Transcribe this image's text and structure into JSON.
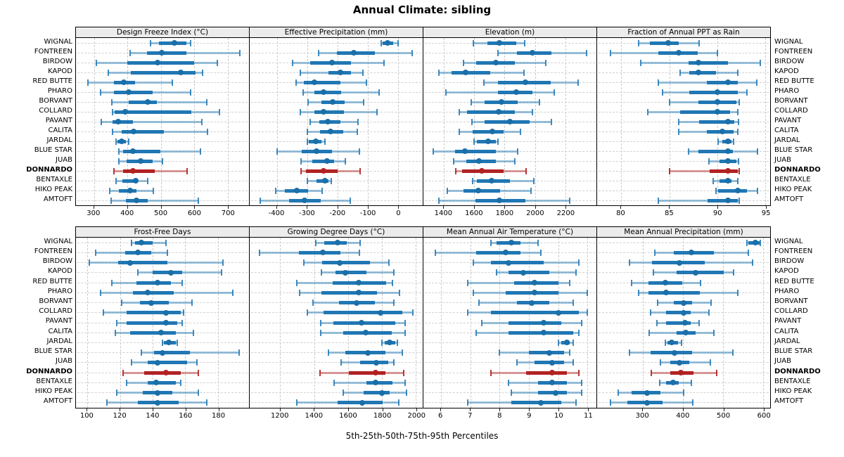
{
  "title": "Annual Climate: sibling",
  "xlabel": "5th-25th-50th-75th-95th Percentiles",
  "sites": [
    "WIGNAL",
    "FONTREEN",
    "BIRDOW",
    "KAPOD",
    "RED BUTTE",
    "PHARO",
    "BORVANT",
    "COLLARD",
    "PAVANT",
    "CALITA",
    "JARDAL",
    "BLUE STAR",
    "JUAB",
    "DONNARDO",
    "BENTAXLE",
    "HIKO PEAK",
    "AMTOFT"
  ],
  "highlight_site": "DONNARDO",
  "colors": {
    "blue_dot": "#1b6fa8",
    "blue_bar": "#2077b4",
    "blue_whisker": "rgba(32,119,180,0.45)",
    "blue_cap": "rgba(32,119,180,0.85)",
    "red_dot": "#b22222",
    "red_bar": "#b22222",
    "red_whisker": "rgba(178,34,34,0.45)",
    "red_cap": "rgba(178,34,34,0.9)",
    "strip_bg": "#ececec",
    "grid": "#c9c9c9"
  },
  "chart_data": [
    {
      "type": "scatter",
      "variant": "percentile-interval-dotplot",
      "title": "Design Freeze Index (°C)",
      "percentiles": [
        5,
        25,
        50,
        75,
        95
      ],
      "xlim": [
        246,
        764
      ],
      "ticks": [
        300,
        400,
        500,
        600,
        700
      ],
      "values": [
        [
          470,
          495,
          540,
          577,
          590
        ],
        [
          408,
          458,
          503,
          576,
          737
        ],
        [
          308,
          400,
          490,
          600,
          670
        ],
        [
          343,
          410,
          560,
          605,
          626
        ],
        [
          281,
          359,
          390,
          422,
          534
        ],
        [
          320,
          359,
          404,
          475,
          590
        ],
        [
          353,
          404,
          460,
          489,
          638
        ],
        [
          356,
          361,
          394,
          592,
          676
        ],
        [
          321,
          355,
          372,
          417,
          622
        ],
        [
          355,
          382,
          418,
          510,
          640
        ],
        [
          365,
          370,
          382,
          395,
          404
        ],
        [
          374,
          388,
          417,
          499,
          619
        ],
        [
          374,
          397,
          440,
          475,
          504
        ],
        [
          359,
          388,
          417,
          482,
          579
        ],
        [
          365,
          385,
          426,
          432,
          460
        ],
        [
          348,
          374,
          408,
          428,
          478
        ],
        [
          351,
          395,
          428,
          460,
          613
        ]
      ]
    },
    {
      "type": "scatter",
      "variant": "percentile-interval-dotplot",
      "title": "Effective Precipitation (mm)",
      "percentiles": [
        5,
        25,
        50,
        75,
        95
      ],
      "xlim": [
        -490,
        82
      ],
      "ticks": [
        -400,
        -300,
        -200,
        -100,
        0
      ],
      "values": [
        [
          -55,
          -50,
          -35,
          -15,
          0
        ],
        [
          -262,
          -202,
          -147,
          -75,
          48
        ],
        [
          -348,
          -290,
          -218,
          -154,
          -46
        ],
        [
          -323,
          -230,
          -190,
          -155,
          -115
        ],
        [
          -337,
          -312,
          -275,
          -190,
          -105
        ],
        [
          -314,
          -277,
          -245,
          -188,
          -62
        ],
        [
          -297,
          -252,
          -215,
          -175,
          -114
        ],
        [
          -323,
          -275,
          -246,
          -179,
          -69
        ],
        [
          -289,
          -260,
          -232,
          -191,
          -131
        ],
        [
          -300,
          -258,
          -223,
          -181,
          -135
        ],
        [
          -300,
          -295,
          -272,
          -252,
          -242
        ],
        [
          -400,
          -318,
          -269,
          -218,
          -128
        ],
        [
          -320,
          -282,
          -235,
          -212,
          -173
        ],
        [
          -320,
          -305,
          -246,
          -200,
          -125
        ],
        [
          -300,
          -268,
          -241,
          -229,
          -220
        ],
        [
          -405,
          -374,
          -335,
          -298,
          -250
        ],
        [
          -455,
          -360,
          -308,
          -256,
          -158
        ]
      ]
    },
    {
      "type": "scatter",
      "variant": "percentile-interval-dotplot",
      "title": "Elevation (m)",
      "percentiles": [
        5,
        25,
        50,
        75,
        95
      ],
      "xlim": [
        1265,
        2405
      ],
      "ticks": [
        1400,
        1600,
        1800,
        2000,
        2200
      ],
      "values": [
        [
          1592,
          1688,
          1765,
          1877,
          1931
        ],
        [
          1754,
          1880,
          1985,
          2108,
          2340
        ],
        [
          1529,
          1611,
          1742,
          1868,
          2072
        ],
        [
          1365,
          1449,
          1542,
          1706,
          1926
        ],
        [
          1662,
          1757,
          1937,
          2103,
          2285
        ],
        [
          1414,
          1757,
          1877,
          1985,
          2126
        ],
        [
          1580,
          1668,
          1780,
          1885,
          2029
        ],
        [
          1500,
          1554,
          1760,
          1868,
          1985
        ],
        [
          1585,
          1669,
          1834,
          1965,
          2108
        ],
        [
          1503,
          1588,
          1718,
          1795,
          1903
        ],
        [
          1600,
          1618,
          1692,
          1742,
          1757
        ],
        [
          1329,
          1472,
          1538,
          1742,
          1888
        ],
        [
          1462,
          1549,
          1631,
          1742,
          1868
        ],
        [
          1480,
          1518,
          1650,
          1795,
          1942
        ],
        [
          1588,
          1615,
          1715,
          1834,
          1992
        ],
        [
          1423,
          1529,
          1626,
          1772,
          1975
        ],
        [
          1369,
          1606,
          1765,
          1938,
          2231
        ]
      ]
    },
    {
      "type": "scatter",
      "variant": "percentile-interval-dotplot",
      "title": "Fraction of Annual PPT as Rain",
      "percentiles": [
        5,
        25,
        50,
        75,
        95
      ],
      "xlim": [
        77.5,
        95.5
      ],
      "ticks": [
        80,
        85,
        90,
        95
      ],
      "values": [
        [
          81.8,
          83.0,
          84.9,
          86.0,
          88.1
        ],
        [
          78.9,
          83.9,
          86.0,
          88.0,
          90.0
        ],
        [
          82.0,
          87.0,
          88.0,
          91.1,
          94.5
        ],
        [
          86.1,
          87.1,
          88.0,
          89.9,
          92.1
        ],
        [
          83.9,
          88.9,
          91.1,
          92.1,
          94.1
        ],
        [
          84.3,
          87.1,
          90.0,
          92.1,
          93.1
        ],
        [
          85.0,
          88.0,
          90.0,
          92.0,
          92.3
        ],
        [
          82.8,
          86.1,
          90.0,
          91.3,
          92.1
        ],
        [
          86.0,
          88.1,
          91.1,
          91.8,
          92.2
        ],
        [
          86.0,
          88.9,
          90.5,
          91.7,
          92.1
        ],
        [
          90.1,
          90.5,
          91.1,
          91.5,
          91.7
        ],
        [
          87.0,
          88.0,
          91.1,
          91.6,
          94.2
        ],
        [
          89.1,
          90.2,
          91.1,
          92.0,
          92.2
        ],
        [
          85.0,
          89.2,
          91.1,
          92.1,
          92.3
        ],
        [
          89.6,
          90.2,
          91.1,
          91.5,
          92.1
        ],
        [
          89.9,
          90.1,
          92.1,
          93.1,
          94.2
        ],
        [
          83.9,
          89.0,
          91.1,
          92.1,
          92.3
        ]
      ]
    },
    {
      "type": "scatter",
      "variant": "percentile-interval-dotplot",
      "title": "Frost-Free Days",
      "percentiles": [
        5,
        25,
        50,
        75,
        95
      ],
      "xlim": [
        93,
        199
      ],
      "ticks": [
        100,
        120,
        140,
        160,
        180
      ],
      "values": [
        [
          127,
          129,
          133,
          140,
          148
        ],
        [
          105,
          123,
          131,
          139,
          149
        ],
        [
          101,
          119,
          126,
          149,
          183
        ],
        [
          131,
          140,
          151,
          158,
          182
        ],
        [
          115,
          130,
          143,
          151,
          158
        ],
        [
          108,
          128,
          137,
          153,
          189
        ],
        [
          121,
          132,
          139,
          150,
          164
        ],
        [
          110,
          124,
          148,
          157,
          159
        ],
        [
          118,
          124,
          148,
          155,
          158
        ],
        [
          117,
          126,
          145,
          154,
          165
        ],
        [
          146,
          147,
          150,
          154,
          155
        ],
        [
          133,
          141,
          146,
          163,
          193
        ],
        [
          127,
          137,
          143,
          161,
          167
        ],
        [
          122,
          135,
          148,
          157,
          168
        ],
        [
          124,
          137,
          142,
          154,
          157
        ],
        [
          118,
          134,
          143,
          152,
          168
        ],
        [
          112,
          131,
          143,
          156,
          173
        ]
      ]
    },
    {
      "type": "scatter",
      "variant": "percentile-interval-dotplot",
      "title": "Growing Degree Days (°C)",
      "percentiles": [
        5,
        25,
        50,
        75,
        95
      ],
      "xlim": [
        1020,
        2040
      ],
      "ticks": [
        1200,
        1400,
        1600,
        1800,
        2000
      ],
      "values": [
        [
          1410,
          1458,
          1537,
          1593,
          1669
        ],
        [
          1079,
          1310,
          1451,
          1554,
          1665
        ],
        [
          1341,
          1448,
          1552,
          1727,
          1841
        ],
        [
          1441,
          1527,
          1585,
          1709,
          1872
        ],
        [
          1299,
          1510,
          1662,
          1823,
          1861
        ],
        [
          1313,
          1444,
          1662,
          1772,
          1902
        ],
        [
          1392,
          1545,
          1651,
          1759,
          1872
        ],
        [
          1359,
          1455,
          1793,
          1920,
          1982
        ],
        [
          1437,
          1513,
          1679,
          1879,
          1938
        ],
        [
          1437,
          1572,
          1706,
          1858,
          1938
        ],
        [
          1800,
          1817,
          1844,
          1879,
          1890
        ],
        [
          1486,
          1585,
          1717,
          1821,
          1920
        ],
        [
          1559,
          1672,
          1768,
          1837,
          1869
        ],
        [
          1433,
          1603,
          1761,
          1821,
          1927
        ],
        [
          1517,
          1710,
          1764,
          1862,
          1938
        ],
        [
          1572,
          1692,
          1800,
          1844,
          1945
        ],
        [
          1299,
          1538,
          1683,
          1803,
          1899
        ]
      ]
    },
    {
      "type": "scatter",
      "variant": "percentile-interval-dotplot",
      "title": "Mean Annual Air Temperature (°C)",
      "percentiles": [
        5,
        25,
        50,
        75,
        95
      ],
      "xlim": [
        5.4,
        11.3
      ],
      "ticks": [
        6,
        7,
        8,
        9,
        10,
        11
      ],
      "values": [
        [
          7.7,
          7.9,
          8.4,
          8.7,
          9.3
        ],
        [
          5.8,
          7.2,
          8.2,
          8.7,
          9.4
        ],
        [
          7.1,
          7.7,
          8.3,
          9.5,
          10.7
        ],
        [
          7.9,
          8.3,
          8.8,
          9.7,
          10.6
        ],
        [
          6.9,
          8.5,
          9.2,
          10.0,
          10.4
        ],
        [
          7.1,
          8.2,
          9.2,
          10.0,
          11.0
        ],
        [
          7.3,
          8.6,
          9.1,
          9.7,
          10.5
        ],
        [
          6.9,
          7.7,
          10.0,
          10.7,
          11.0
        ],
        [
          7.4,
          8.3,
          9.5,
          10.1,
          10.8
        ],
        [
          7.2,
          8.3,
          9.5,
          10.5,
          10.7
        ],
        [
          10.0,
          10.1,
          10.3,
          10.4,
          10.5
        ],
        [
          8.0,
          9.0,
          9.7,
          10.2,
          10.4
        ],
        [
          8.6,
          9.2,
          9.8,
          10.2,
          10.5
        ],
        [
          7.7,
          8.9,
          9.8,
          10.3,
          10.7
        ],
        [
          8.3,
          9.3,
          9.8,
          10.3,
          10.8
        ],
        [
          8.4,
          9.3,
          9.9,
          10.3,
          10.8
        ],
        [
          6.9,
          8.4,
          9.4,
          10.1,
          10.6
        ]
      ]
    },
    {
      "type": "scatter",
      "variant": "percentile-interval-dotplot",
      "title": "Mean Annual Precipitation (mm)",
      "percentiles": [
        5,
        25,
        50,
        75,
        95
      ],
      "xlim": [
        187,
        617
      ],
      "ticks": [
        300,
        400,
        500,
        600
      ],
      "values": [
        [
          560,
          562,
          581,
          591,
          593
        ],
        [
          331,
          377,
          422,
          477,
          563
        ],
        [
          267,
          323,
          391,
          455,
          574
        ],
        [
          327,
          384,
          431,
          502,
          526
        ],
        [
          273,
          314,
          356,
          399,
          444
        ],
        [
          290,
          315,
          359,
          443,
          537
        ],
        [
          337,
          378,
          402,
          423,
          470
        ],
        [
          319,
          358,
          402,
          419,
          465
        ],
        [
          335,
          359,
          405,
          420,
          441
        ],
        [
          317,
          384,
          407,
          431,
          478
        ],
        [
          357,
          362,
          372,
          388,
          397
        ],
        [
          267,
          319,
          379,
          423,
          524
        ],
        [
          344,
          368,
          392,
          416,
          469
        ],
        [
          321,
          368,
          395,
          427,
          484
        ],
        [
          342,
          358,
          376,
          389,
          422
        ],
        [
          239,
          273,
          311,
          345,
          402
        ],
        [
          220,
          263,
          311,
          349,
          425
        ]
      ]
    }
  ]
}
